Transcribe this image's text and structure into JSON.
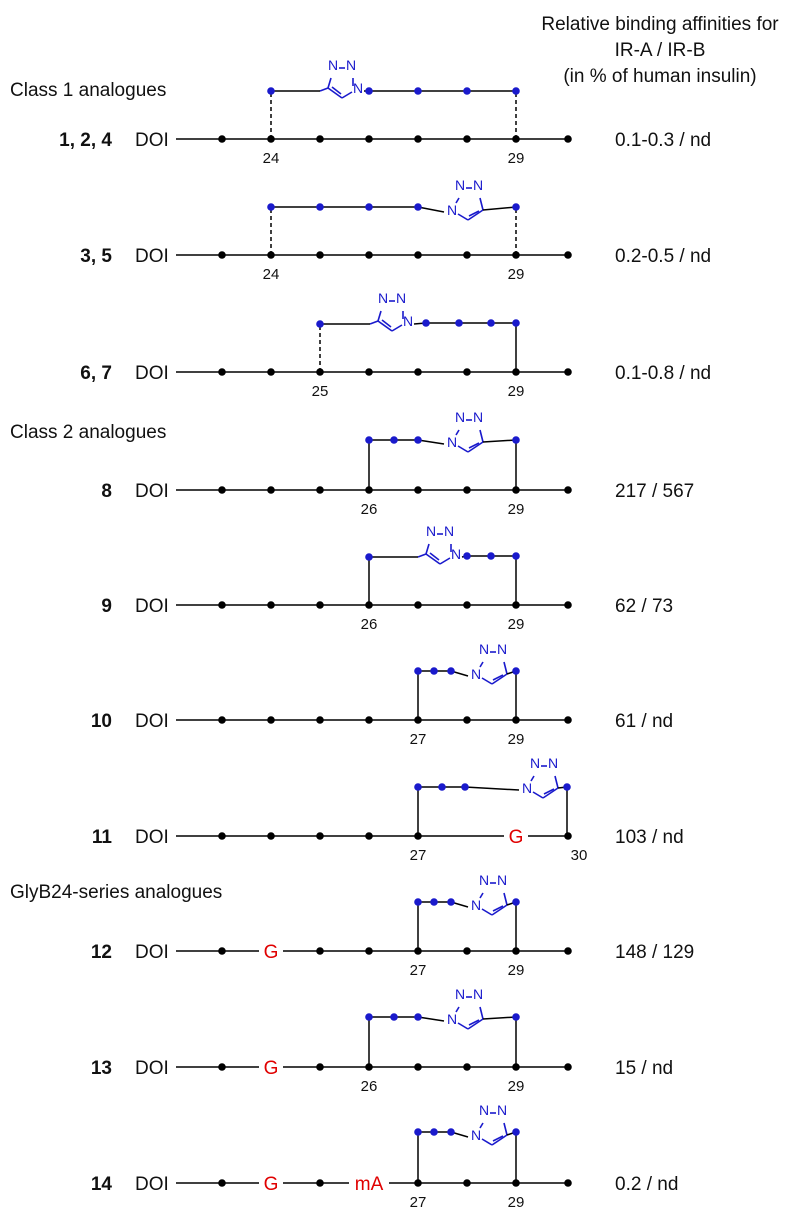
{
  "header": {
    "lines": [
      "Relative binding affinities for",
      "IR-A / IR-B",
      "(in % of human insulin)"
    ]
  },
  "sections": [
    "Class 1 analogues",
    "Class 2 analogues",
    "GlyB24-series analogues"
  ],
  "triazole_atom_label": "N",
  "colors": {
    "backbone": "#000000",
    "linker": "#1a1acc",
    "residue_highlight": "#e00000"
  },
  "compounds": [
    {
      "label": "1, 2, 4",
      "n_term": "DOI",
      "positions": [
        "24",
        "29"
      ],
      "special_residues": [],
      "affinity": "0.1-0.3 / nd"
    },
    {
      "label": "3, 5",
      "n_term": "DOI",
      "positions": [
        "24",
        "29"
      ],
      "special_residues": [],
      "affinity": "0.2-0.5 / nd"
    },
    {
      "label": "6, 7",
      "n_term": "DOI",
      "positions": [
        "25",
        "29"
      ],
      "special_residues": [],
      "affinity": "0.1-0.8 / nd"
    },
    {
      "label": "8",
      "n_term": "DOI",
      "positions": [
        "26",
        "29"
      ],
      "special_residues": [],
      "affinity": "217 / 567"
    },
    {
      "label": "9",
      "n_term": "DOI",
      "positions": [
        "26",
        "29"
      ],
      "special_residues": [],
      "affinity": "62 / 73"
    },
    {
      "label": "10",
      "n_term": "DOI",
      "positions": [
        "27",
        "29"
      ],
      "special_residues": [],
      "affinity": "61 / nd"
    },
    {
      "label": "11",
      "n_term": "DOI",
      "positions": [
        "27",
        "30"
      ],
      "special_residues": [
        "G"
      ],
      "affinity": "103 / nd"
    },
    {
      "label": "12",
      "n_term": "DOI",
      "positions": [
        "27",
        "29"
      ],
      "special_residues": [
        "G"
      ],
      "affinity": "148 / 129"
    },
    {
      "label": "13",
      "n_term": "DOI",
      "positions": [
        "26",
        "29"
      ],
      "special_residues": [
        "G"
      ],
      "affinity": "15 / nd"
    },
    {
      "label": "14",
      "n_term": "DOI",
      "positions": [
        "27",
        "29"
      ],
      "special_residues": [
        "G",
        "mA"
      ],
      "affinity": "0.2 / nd"
    }
  ]
}
